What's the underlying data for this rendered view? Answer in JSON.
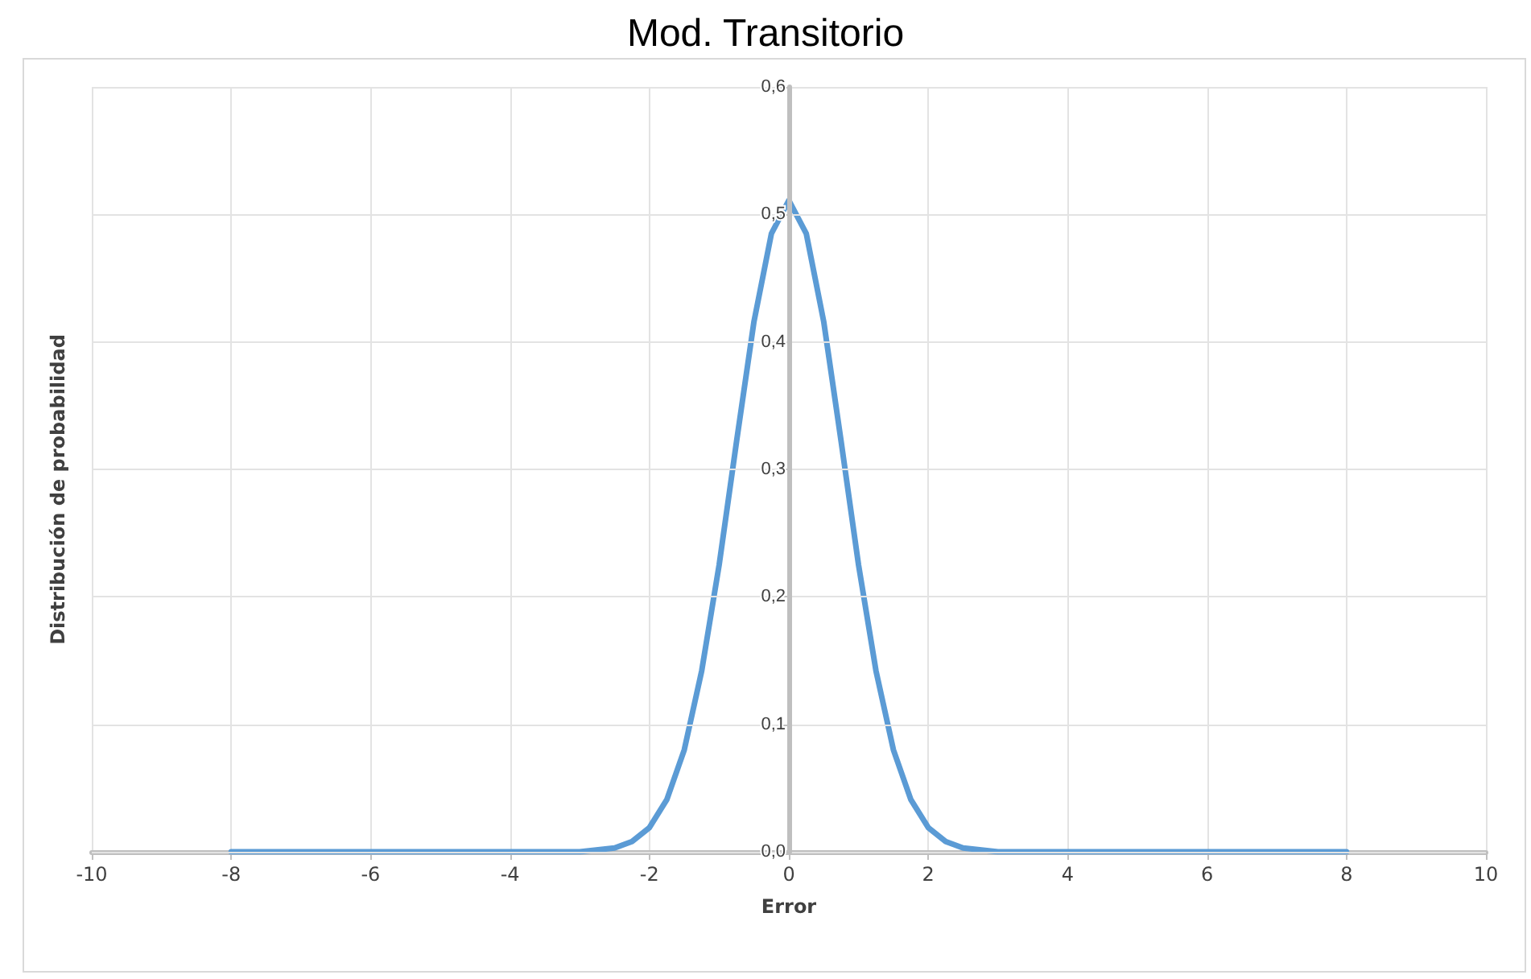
{
  "chart_data": {
    "type": "line",
    "title": "Mod. Transitorio",
    "xlabel": "Error",
    "ylabel": "Distribución de probabilidad",
    "x": [
      -8,
      -7,
      -6,
      -5,
      -4,
      -3.5,
      -3,
      -2.5,
      -2.25,
      -2,
      -1.75,
      -1.5,
      -1.25,
      -1,
      -0.75,
      -0.5,
      -0.25,
      0,
      0.25,
      0.5,
      0.75,
      1,
      1.25,
      1.5,
      1.75,
      2,
      2.25,
      2.5,
      3,
      3.5,
      4,
      5,
      6,
      7,
      8
    ],
    "series": [
      {
        "color": "#5b9bd5",
        "values": [
          0,
          0,
          0,
          0,
          0,
          0,
          0,
          0.003,
          0.008,
          0.019,
          0.041,
          0.08,
          0.142,
          0.225,
          0.322,
          0.416,
          0.485,
          0.511,
          0.485,
          0.416,
          0.322,
          0.225,
          0.142,
          0.08,
          0.041,
          0.019,
          0.008,
          0.003,
          0,
          0,
          0,
          0,
          0,
          0,
          0
        ]
      }
    ],
    "xlim": [
      -10,
      10
    ],
    "xticks": [
      -10,
      -8,
      -6,
      -4,
      -2,
      0,
      2,
      4,
      6,
      8,
      10
    ],
    "ylim": [
      0,
      0.6
    ],
    "yticks": [
      {
        "value": 0,
        "label": "0,0"
      },
      {
        "value": 0.1,
        "label": "0,1"
      },
      {
        "value": 0.2,
        "label": "0,2"
      },
      {
        "value": 0.3,
        "label": "0,3"
      },
      {
        "value": 0.4,
        "label": "0,4"
      },
      {
        "value": 0.5,
        "label": "0,5"
      },
      {
        "value": 0.6,
        "label": "0,6"
      }
    ],
    "grid": true,
    "marker": "none",
    "line_style": "solid"
  }
}
